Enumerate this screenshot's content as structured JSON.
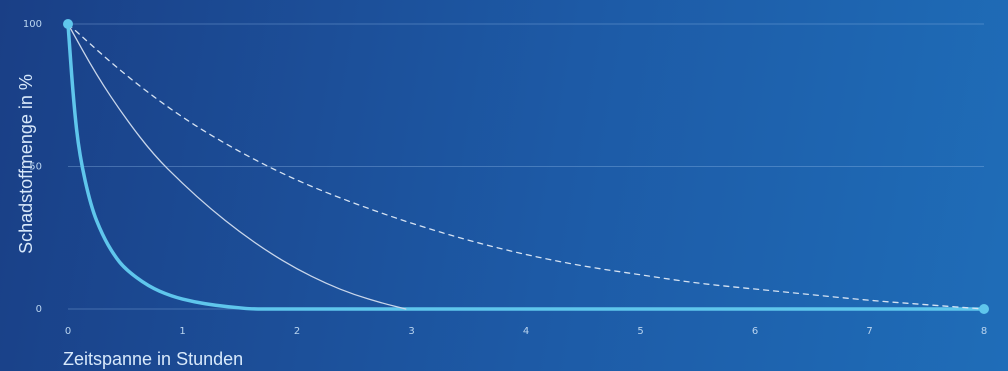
{
  "chart_data": {
    "type": "line",
    "title": "",
    "xlabel": "Zeitspanne in Stunden",
    "ylabel": "Schadstoffmenge in %",
    "x_ticks": [
      "0",
      "1",
      "2",
      "3",
      "4",
      "5",
      "6",
      "7",
      "8"
    ],
    "y_ticks": [
      "0",
      "50",
      "100"
    ],
    "xlim": [
      0,
      8
    ],
    "ylim": [
      0,
      100
    ],
    "grid": "horizontal",
    "series": [
      {
        "style": "thick solid",
        "color": "#5fc6ec",
        "x": [
          0,
          0.05,
          0.1,
          0.2,
          0.3,
          0.4,
          0.5,
          0.7,
          0.9,
          1.1,
          1.3,
          1.5,
          1.6,
          2,
          3,
          4,
          5,
          6,
          7,
          8
        ],
        "y": [
          100,
          72,
          54,
          36,
          26,
          19,
          14,
          8,
          4.5,
          2.5,
          1.2,
          0.4,
          0,
          0,
          0,
          0,
          0,
          0,
          0,
          0
        ]
      },
      {
        "style": "thin solid",
        "color": "#c9d6ea",
        "x": [
          0,
          0.25,
          0.5,
          0.75,
          1,
          1.25,
          1.5,
          1.75,
          2,
          2.25,
          2.5,
          2.75,
          2.95
        ],
        "y": [
          100,
          82,
          67,
          54,
          44,
          35,
          27,
          20,
          14,
          9,
          5,
          2,
          0
        ]
      },
      {
        "style": "dashed",
        "color": "#d5e2f2",
        "x": [
          0,
          0.5,
          1,
          1.5,
          2,
          2.5,
          3,
          3.5,
          4,
          4.5,
          5,
          5.5,
          6,
          6.5,
          7,
          7.5,
          8
        ],
        "y": [
          100,
          82,
          67,
          55,
          45,
          37,
          30,
          24,
          19,
          15,
          12,
          9,
          7,
          5,
          3,
          1.5,
          0
        ]
      }
    ],
    "markers": [
      {
        "x": 0,
        "y": 100
      },
      {
        "x": 8,
        "y": 0
      }
    ]
  }
}
